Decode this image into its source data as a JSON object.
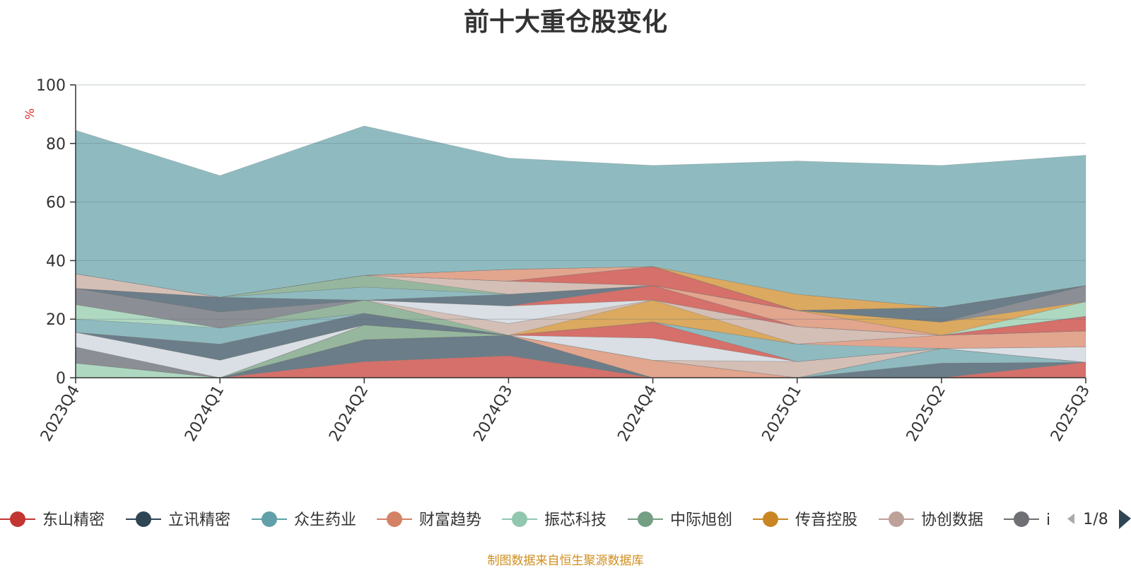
{
  "chart_data": {
    "type": "area",
    "title": "前十大重仓股变化",
    "ylabel": "%",
    "ylim": [
      0,
      100
    ],
    "yticks": [
      0,
      20,
      40,
      60,
      80,
      100
    ],
    "grid": true,
    "legend_position": "bottom",
    "categories": [
      "2023Q4",
      "2024Q1",
      "2024Q2",
      "2024Q3",
      "2024Q4",
      "2025Q1",
      "2025Q2",
      "2025Q3"
    ],
    "series": [
      {
        "name": "东山精密",
        "values": [
          0,
          0,
          5.5,
          7.5,
          0,
          0,
          0,
          5.3
        ]
      },
      {
        "name": "立讯精密",
        "values": [
          0,
          0,
          7.5,
          7.0,
          0,
          0,
          5.0,
          0
        ]
      },
      {
        "name": "众生药业",
        "values": [
          0,
          0,
          0,
          0,
          0,
          0,
          5.0,
          0
        ]
      },
      {
        "name": "财富趋势",
        "values": [
          0,
          0,
          0,
          0,
          6.0,
          0,
          0,
          0
        ]
      },
      {
        "name": "振芯科技",
        "values": [
          5.0,
          0,
          0,
          0,
          0,
          0,
          0,
          0
        ]
      },
      {
        "name": "中际旭创",
        "values": [
          0,
          0,
          5.0,
          0,
          0,
          0,
          0,
          0
        ]
      },
      {
        "name": "传音控股",
        "values": [
          0,
          0,
          0,
          0,
          0,
          0,
          0,
          0
        ]
      },
      {
        "name": "协创数据",
        "values": [
          0,
          0,
          0,
          0,
          0,
          5.5,
          0,
          0
        ]
      },
      {
        "name": "",
        "values": [
          5.5,
          0,
          0,
          0,
          0,
          0,
          0,
          0
        ]
      },
      {
        "name": "",
        "values": [
          5.0,
          6.0,
          0,
          0,
          7.5,
          0,
          0,
          5.2
        ]
      },
      {
        "name": "",
        "values": [
          0,
          0,
          0,
          0,
          5.5,
          0,
          0,
          0
        ]
      },
      {
        "name": "",
        "values": [
          0,
          5.5,
          4.0,
          0,
          0,
          0,
          0,
          0
        ]
      },
      {
        "name": "",
        "values": [
          4.5,
          5.5,
          0,
          0,
          0,
          6.0,
          0,
          0
        ]
      },
      {
        "name": "",
        "values": [
          0,
          0,
          0,
          0,
          0,
          0,
          4.5,
          5.5
        ]
      },
      {
        "name": "",
        "values": [
          5.0,
          0,
          0,
          0,
          0,
          0,
          0,
          0
        ]
      },
      {
        "name": "",
        "values": [
          0,
          0,
          4.5,
          0,
          0,
          0,
          0,
          0
        ]
      },
      {
        "name": "",
        "values": [
          0,
          0,
          0,
          0,
          7.5,
          0,
          0,
          0
        ]
      },
      {
        "name": "",
        "values": [
          0,
          0,
          0,
          4.0,
          0,
          6.0,
          0,
          0
        ]
      },
      {
        "name": "",
        "values": [
          5.5,
          5.5,
          0,
          0,
          0,
          0,
          0,
          0
        ]
      },
      {
        "name": "",
        "values": [
          0,
          0,
          0,
          6.0,
          0,
          0,
          0,
          0
        ]
      },
      {
        "name": "",
        "values": [
          0,
          0,
          0,
          0,
          5.0,
          0,
          0,
          5.0
        ]
      },
      {
        "name": "",
        "values": [
          0,
          5.0,
          0,
          4.0,
          0,
          0,
          0,
          0
        ]
      },
      {
        "name": "",
        "values": [
          0,
          0,
          4.5,
          0,
          0,
          0,
          0,
          0
        ]
      },
      {
        "name": "",
        "values": [
          0,
          0,
          0,
          0,
          0,
          5.5,
          0,
          0
        ]
      },
      {
        "name": "",
        "values": [
          0,
          0,
          0,
          0,
          0,
          0,
          0,
          5.0
        ]
      },
      {
        "name": "",
        "values": [
          0,
          0,
          4.0,
          0,
          0,
          0,
          0,
          0
        ]
      },
      {
        "name": "",
        "values": [
          0,
          0,
          0,
          0,
          0,
          0,
          4.5,
          0
        ]
      },
      {
        "name": "",
        "values": [
          5.0,
          0,
          0,
          4.5,
          0,
          0,
          0,
          0
        ]
      },
      {
        "name": "",
        "values": [
          0,
          0,
          0,
          0,
          0,
          0,
          0,
          5.5
        ]
      },
      {
        "name": "",
        "values": [
          0,
          0,
          0,
          0,
          0,
          0,
          0,
          0
        ]
      },
      {
        "name": "",
        "values": [
          0,
          0,
          0,
          0,
          6.5,
          0,
          0,
          0
        ]
      },
      {
        "name": "",
        "values": [
          0,
          0,
          0,
          0,
          0,
          0,
          5.0,
          0
        ]
      },
      {
        "name": "",
        "values": [
          0,
          0,
          0,
          0,
          0,
          0,
          0,
          0
        ]
      },
      {
        "name": "",
        "values": [
          0,
          0,
          0,
          4.0,
          0,
          0,
          0,
          0
        ]
      },
      {
        "name": "",
        "values": [
          0,
          0,
          0,
          0,
          0,
          0,
          0,
          0
        ]
      },
      {
        "name": "",
        "values": [
          0,
          0,
          0,
          0,
          0,
          0,
          0,
          0
        ]
      },
      {
        "name": "",
        "values": [
          0,
          0,
          0,
          0,
          0,
          5.5,
          0,
          0
        ]
      },
      {
        "name": "",
        "values": [
          0,
          0,
          0,
          0,
          0,
          0,
          0,
          0
        ]
      },
      {
        "name": "",
        "values": [
          0,
          0,
          0,
          0,
          0,
          0,
          0,
          0
        ]
      },
      {
        "name": "",
        "values": [
          49,
          41.5,
          51,
          38,
          34.5,
          45.5,
          48.5,
          44.5
        ]
      }
    ],
    "colors": [
      "#d5706a",
      "#6b7d88",
      "#8fbbc0",
      "#e2a58e",
      "#afd8c1",
      "#96b79e",
      "#dba95f",
      "#d4bfb6",
      "#8b8f95",
      "#d9dfe4"
    ],
    "last_color": "#8fbbc0"
  },
  "legend": {
    "items": [
      {
        "label": "东山精密",
        "color": "#c23531"
      },
      {
        "label": "立讯精密",
        "color": "#2f4554"
      },
      {
        "label": "众生药业",
        "color": "#61a0a8"
      },
      {
        "label": "财富趋势",
        "color": "#d48265"
      },
      {
        "label": "振芯科技",
        "color": "#91c7ae"
      },
      {
        "label": "中际旭创",
        "color": "#749f83"
      },
      {
        "label": "传音控股",
        "color": "#ca8622"
      },
      {
        "label": "协创数据",
        "color": "#bda29a"
      },
      {
        "label": "i",
        "color": "#6e7074"
      }
    ],
    "page": "1/8"
  },
  "source": "制图数据来自恒生聚源数据库"
}
